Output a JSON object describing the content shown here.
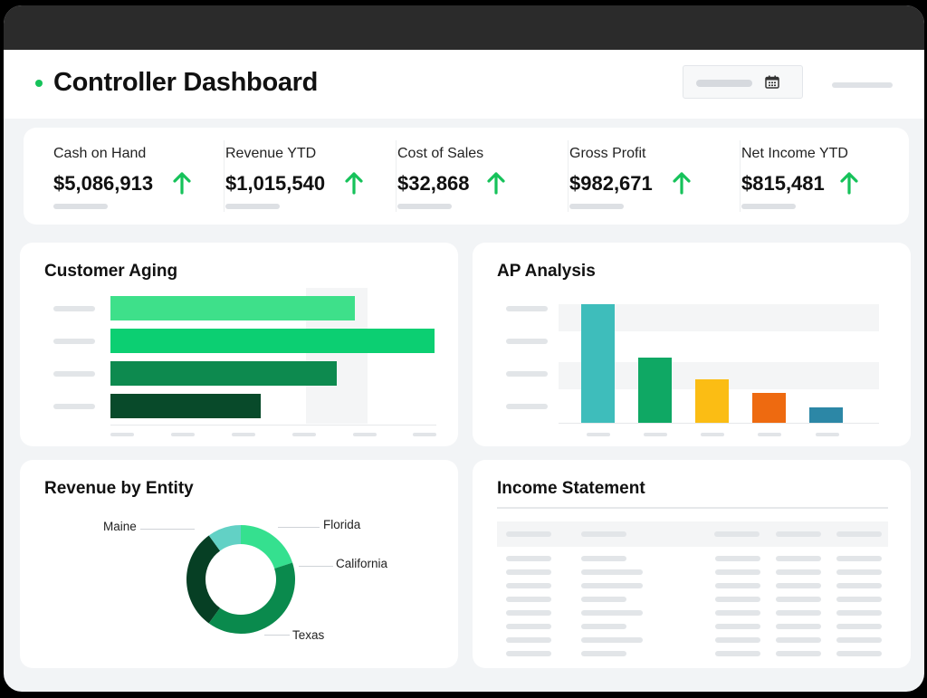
{
  "header": {
    "title": "Controller Dashboard"
  },
  "icons": {
    "title_dot": "status-dot-icon",
    "date": "calendar-icon",
    "trend": "arrow-up-icon"
  },
  "colors": {
    "accent": "#16c25a",
    "trend_up": "#16c25a",
    "aging": [
      "#3ee08a",
      "#0ccf72",
      "#0d8a4f",
      "#084a2a"
    ],
    "ap": [
      "#3ebdbb",
      "#0fa864",
      "#fbbd14",
      "#ee6a10",
      "#2c87a6"
    ],
    "revenue": {
      "Maine": "#063f24",
      "Florida": "#62d1c5",
      "California": "#35e08f",
      "Texas": "#0a8a4d"
    }
  },
  "kpis": [
    {
      "label": "Cash on Hand",
      "value": "$5,086,913",
      "trend": "up"
    },
    {
      "label": "Revenue YTD",
      "value": "$1,015,540",
      "trend": "up"
    },
    {
      "label": "Cost of Sales",
      "value": "$32,868",
      "trend": "up"
    },
    {
      "label": "Gross Profit",
      "value": "$982,671",
      "trend": "up"
    },
    {
      "label": "Net Income YTD",
      "value": "$815,481",
      "trend": "up"
    }
  ],
  "customer_aging": {
    "title": "Customer Aging"
  },
  "ap_analysis": {
    "title": "AP Analysis"
  },
  "revenue_by_entity": {
    "title": "Revenue by Entity"
  },
  "income_statement": {
    "title": "Income Statement"
  },
  "chart_data": [
    {
      "type": "bar",
      "orientation": "horizontal",
      "title": "Customer Aging",
      "values": [
        0.7,
        0.93,
        0.65,
        0.43
      ],
      "value_unit": "fraction of axis width",
      "grid": false
    },
    {
      "type": "bar",
      "orientation": "vertical",
      "title": "AP Analysis",
      "values": [
        1.0,
        0.55,
        0.37,
        0.25,
        0.13
      ],
      "value_unit": "fraction of tallest bar",
      "grid": false
    },
    {
      "type": "pie",
      "style": "donut",
      "title": "Revenue by Entity",
      "labels": [
        "Maine",
        "Florida",
        "California",
        "Texas"
      ],
      "values": [
        30,
        10,
        20,
        40
      ],
      "value_unit": "approximate percent of circle"
    }
  ]
}
